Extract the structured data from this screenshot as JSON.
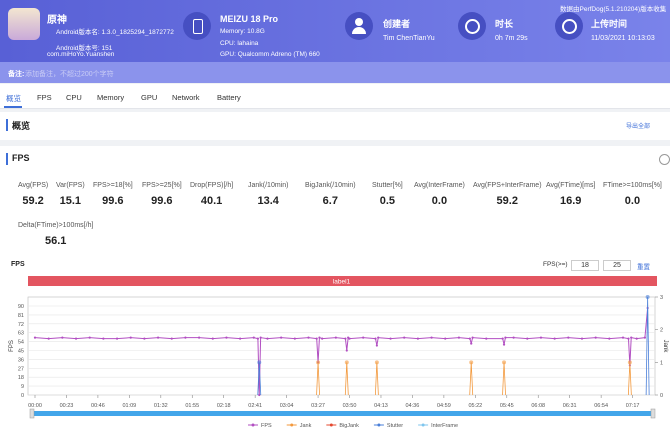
{
  "header": {
    "app": {
      "name": "原神",
      "version_name": "Android版本名: 1.3.0_1825294_1872772",
      "version_code": "Android版本号: 151",
      "package": "com.miHoYo.Yuanshen"
    },
    "device": {
      "name": "MEIZU 18 Pro",
      "memory": "Memory: 10.8G",
      "cpu": "CPU: lahaina",
      "gpu": "GPU: Qualcomm Adreno (TM) 660"
    },
    "creator": {
      "label": "创建者",
      "value": "Tim ChenTianYu"
    },
    "duration": {
      "label": "时长",
      "value": "0h 7m 29s"
    },
    "upload": {
      "label": "上传时间",
      "value": "11/03/2021 10:13:03"
    },
    "source": "数据由PerfDog(5.1.210204)版本收集"
  },
  "note": {
    "label": "备注:",
    "placeholder": "添加备注，不超过200个字符"
  },
  "tabs": [
    "概览",
    "FPS",
    "CPU",
    "Memory",
    "GPU",
    "Network",
    "Battery"
  ],
  "overview": {
    "title": "概览",
    "export": "导出全部"
  },
  "fps_section": {
    "title": "FPS",
    "stats": [
      {
        "label": "Avg(FPS)",
        "value": "59.2"
      },
      {
        "label": "Var(FPS)",
        "value": "15.1"
      },
      {
        "label": "FPS>=18[%]",
        "value": "99.6"
      },
      {
        "label": "FPS>=25[%]",
        "value": "99.6"
      },
      {
        "label": "Drop(FPS)[/h]",
        "value": "40.1"
      },
      {
        "label": "Jank(/10min)",
        "value": "13.4"
      },
      {
        "label": "BigJank(/10min)",
        "value": "6.7"
      },
      {
        "label": "Stutter[%]",
        "value": "0.5"
      },
      {
        "label": "Avg(InterFrame)",
        "value": "0.0"
      },
      {
        "label": "Avg(FPS+InterFrame)",
        "value": "59.2"
      },
      {
        "label": "Avg(FTime)[ms]",
        "value": "16.9"
      },
      {
        "label": "FTime>=100ms[%]",
        "value": "0.0"
      },
      {
        "label": "Delta(FTime)>100ms[/h]",
        "value": "56.1"
      }
    ]
  },
  "fps_filter": {
    "label": "FPS(>=)",
    "inputs": [
      "18",
      "25"
    ],
    "reset": "重置"
  },
  "chart_data": {
    "type": "line",
    "title": "FPS",
    "label_bar": "label1",
    "y_label": "FPS",
    "y2_label": "Jank",
    "xlim": [
      0,
      449
    ],
    "xticks": [
      {
        "value": 0,
        "label": "00:00"
      },
      {
        "value": 23,
        "label": "00:23"
      },
      {
        "value": 46,
        "label": "00:46"
      },
      {
        "value": 69,
        "label": "01:09"
      },
      {
        "value": 92,
        "label": "01:32"
      },
      {
        "value": 115,
        "label": "01:55"
      },
      {
        "value": 138,
        "label": "02:18"
      },
      {
        "value": 161,
        "label": "02:41"
      },
      {
        "value": 184,
        "label": "03:04"
      },
      {
        "value": 207,
        "label": "03:27"
      },
      {
        "value": 230,
        "label": "03:50"
      },
      {
        "value": 253,
        "label": "04:13"
      },
      {
        "value": 276,
        "label": "04:36"
      },
      {
        "value": 299,
        "label": "04:59"
      },
      {
        "value": 322,
        "label": "05:22"
      },
      {
        "value": 345,
        "label": "05:45"
      },
      {
        "value": 368,
        "label": "06:08"
      },
      {
        "value": 391,
        "label": "06:31"
      },
      {
        "value": 414,
        "label": "06:54"
      },
      {
        "value": 437,
        "label": "07:17"
      }
    ],
    "ylim": [
      0,
      90
    ],
    "yticks": [
      0,
      9,
      18,
      27,
      36,
      45,
      54,
      63,
      72,
      81,
      90
    ],
    "y2lim": [
      0,
      3
    ],
    "y2ticks": [
      0,
      1,
      2,
      3
    ],
    "grid": true,
    "series": [
      {
        "name": "FPS",
        "color": "#b24fc2",
        "kind": "line",
        "x": [
          0,
          10,
          20,
          30,
          40,
          50,
          60,
          70,
          80,
          90,
          100,
          110,
          120,
          130,
          140,
          150,
          160,
          163,
          164,
          165,
          170,
          180,
          190,
          200,
          206,
          207,
          208,
          210,
          220,
          227,
          228,
          229,
          230,
          240,
          249,
          250,
          251,
          260,
          270,
          280,
          290,
          300,
          310,
          318,
          319,
          320,
          330,
          342,
          343,
          344,
          350,
          360,
          370,
          380,
          390,
          400,
          410,
          420,
          430,
          434,
          435,
          436,
          440,
          446,
          448
        ],
        "values": [
          58,
          57,
          58,
          57,
          58,
          57,
          57,
          58,
          57,
          58,
          57,
          58,
          58,
          57,
          58,
          57,
          58,
          57,
          0,
          58,
          57,
          58,
          57,
          58,
          57,
          33,
          58,
          57,
          58,
          57,
          45,
          58,
          57,
          58,
          57,
          50,
          58,
          57,
          58,
          57,
          58,
          57,
          58,
          57,
          52,
          58,
          57,
          57,
          51,
          58,
          58,
          57,
          58,
          57,
          58,
          57,
          58,
          57,
          58,
          57,
          30,
          58,
          57,
          58,
          88
        ]
      },
      {
        "name": "Jank",
        "color": "#f39a3e",
        "kind": "spike",
        "axis": "y2",
        "x": [
          207,
          228,
          250,
          319,
          343,
          435
        ],
        "values": [
          1,
          1,
          1,
          1,
          1,
          1
        ]
      },
      {
        "name": "BigJank",
        "color": "#e5482f",
        "kind": "spike",
        "axis": "y2",
        "x": [],
        "values": []
      },
      {
        "name": "Stutter",
        "color": "#4a7fd8",
        "kind": "spike",
        "axis": "y2",
        "x": [
          164,
          448
        ],
        "values": [
          1,
          3
        ]
      },
      {
        "name": "InterFrame",
        "color": "#7fc6ee",
        "kind": "spike",
        "axis": "y2",
        "x": [],
        "values": []
      }
    ]
  }
}
